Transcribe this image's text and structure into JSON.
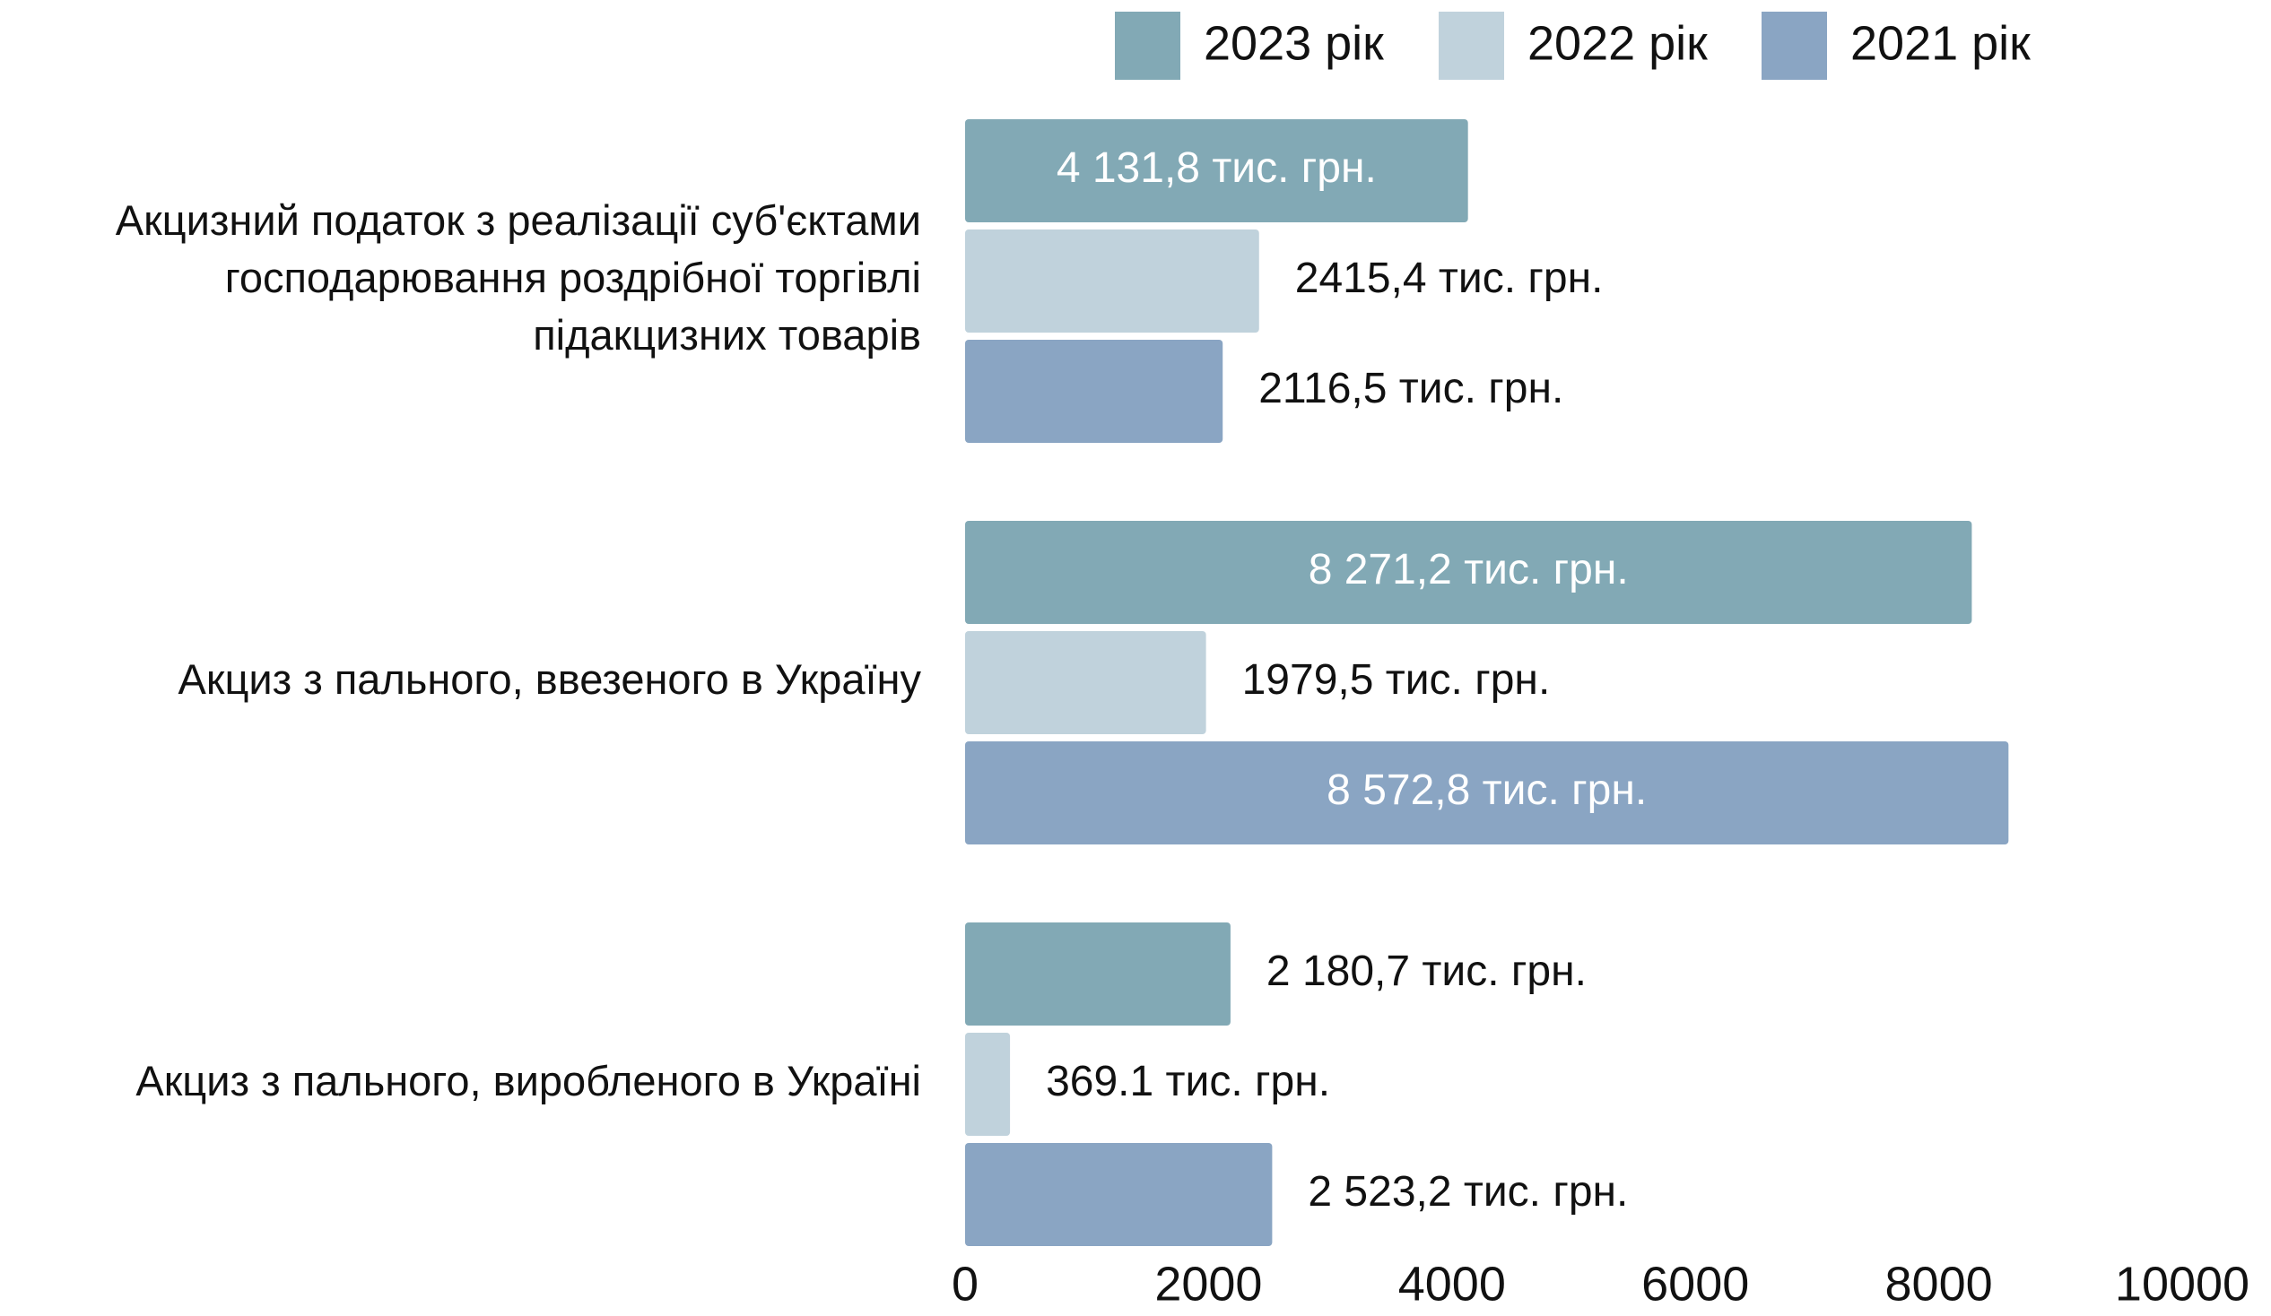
{
  "chart_data": {
    "type": "bar",
    "orientation": "horizontal",
    "categories": [
      [
        "Акцизний податок з реалізації суб'єктами",
        "господарювання роздрібної торгівлі",
        "підакцизних товарів"
      ],
      [
        "Акциз з пального, ввезеного в Україну"
      ],
      [
        "Акциз з пального, виробленого в Україні"
      ]
    ],
    "series": [
      {
        "name": "2023 рік",
        "color": "#82a9b5",
        "values": [
          4131.8,
          8271.2,
          2180.7
        ],
        "value_labels": [
          "4 131,8 тис. грн.",
          "8 271,2 тис. грн.",
          "2 180,7 тис. грн."
        ]
      },
      {
        "name": "2022 рік",
        "color": "#c0d2dc",
        "values": [
          2415.4,
          1979.5,
          369.1
        ],
        "value_labels": [
          "2415,4 тис. грн.",
          "1979,5 тис. грн.",
          "369.1 тис. грн."
        ]
      },
      {
        "name": "2021 рік",
        "color": "#8aa5c3",
        "values": [
          2116.5,
          8572.8,
          2523.2
        ],
        "value_labels": [
          "2116,5 тис. грн.",
          "8 572,8 тис. грн.",
          "2 523,2 тис. грн."
        ]
      }
    ],
    "xlim": [
      0,
      10000
    ],
    "xticks": [
      0,
      2000,
      4000,
      6000,
      8000,
      10000
    ],
    "legend": "top"
  }
}
